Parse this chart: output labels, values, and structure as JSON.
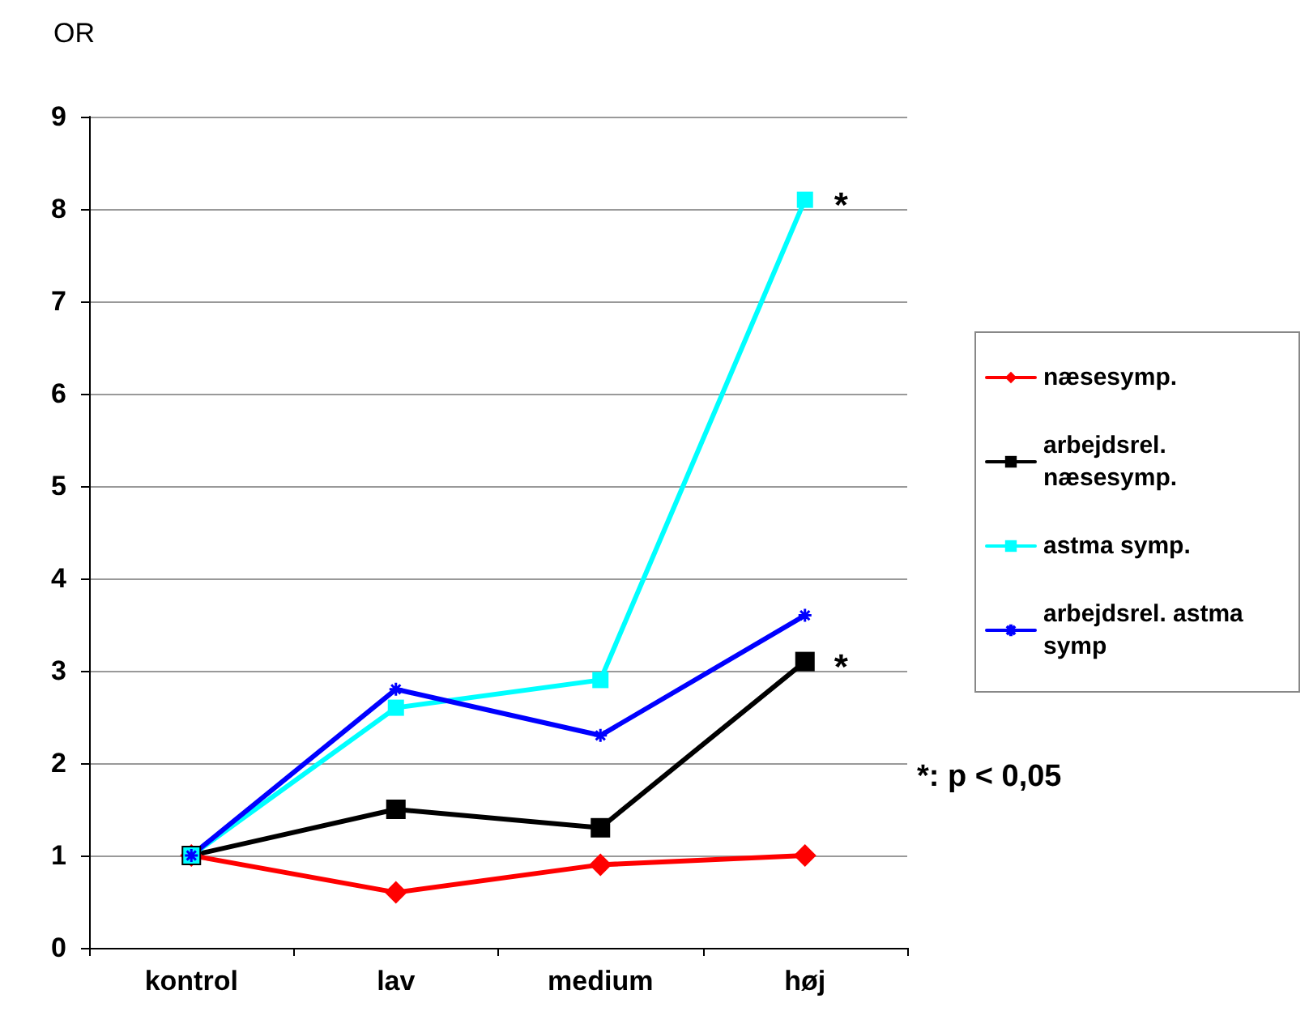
{
  "chart_data": {
    "type": "line",
    "ylabel": "OR",
    "categories": [
      "kontrol",
      "lav",
      "medium",
      "høj"
    ],
    "series": [
      {
        "name": "næsesymp.",
        "color": "#ff0000",
        "marker": "diamond",
        "values": [
          1,
          0.6,
          0.9,
          1.0
        ]
      },
      {
        "name": "arbejdsrel. næsesymp.",
        "color": "#000000",
        "marker": "square",
        "values": [
          1,
          1.5,
          1.3,
          3.1
        ]
      },
      {
        "name": "astma symp.",
        "color": "#00ffff",
        "marker": "square",
        "values": [
          1,
          2.6,
          2.9,
          8.1
        ]
      },
      {
        "name": "arbejdsrel. astma symp",
        "color": "#0000ff",
        "marker": "cross",
        "values": [
          1,
          2.8,
          2.3,
          3.6
        ]
      }
    ],
    "ylim": [
      0,
      9
    ],
    "yticks": [
      0,
      1,
      2,
      3,
      4,
      5,
      6,
      7,
      8,
      9
    ],
    "grid": "y",
    "legend": "right",
    "annotations": [
      {
        "text": "*",
        "x": "høj",
        "y": 8.1
      },
      {
        "text": "*",
        "x": "høj",
        "y": 3.1
      },
      "*: p < 0,05"
    ]
  }
}
